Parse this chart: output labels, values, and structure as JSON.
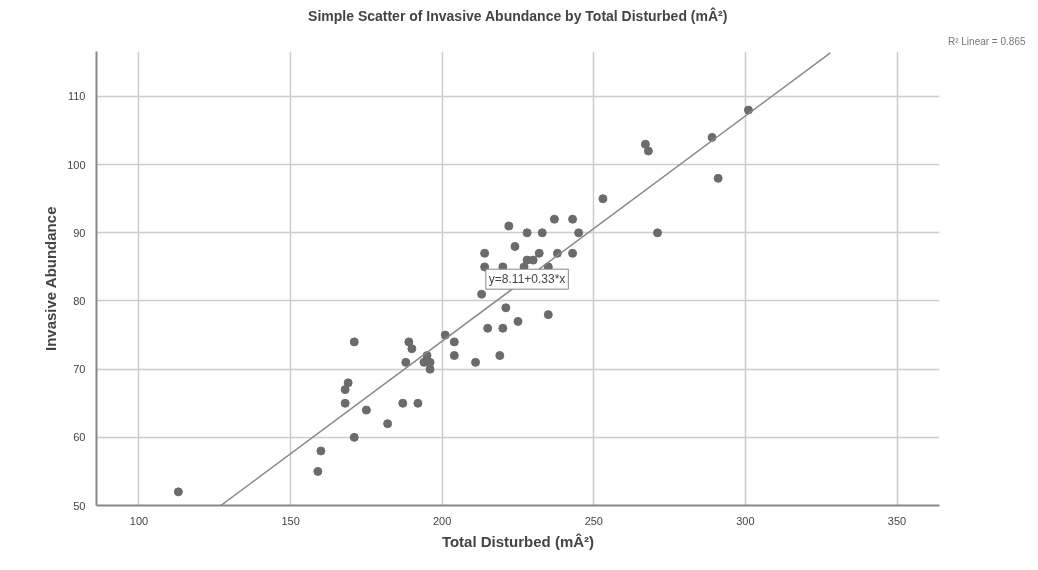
{
  "chart_data": {
    "type": "scatter",
    "title": "Simple Scatter of Invasive Abundance by Total Disturbed (mÂ²)",
    "xlabel": "Total Disturbed (mÂ²)",
    "ylabel": "Invasive Abundance",
    "xlim": [
      86,
      364
    ],
    "xticks": [
      100,
      150,
      200,
      250,
      300,
      350
    ],
    "ylim": [
      50,
      116.6
    ],
    "yticks": [
      50,
      60,
      70,
      80,
      90,
      100,
      110
    ],
    "grid": true,
    "series": [
      {
        "type": "scatter",
        "marker": "circle",
        "color": "#6b6b6b",
        "x": [
          113,
          171,
          189,
          190,
          169,
          168,
          168,
          175,
          187,
          192,
          182,
          171,
          160,
          159,
          253,
          222,
          237,
          243,
          228,
          233,
          245,
          271,
          224,
          214,
          232,
          238,
          243,
          228,
          230,
          214,
          220,
          227,
          235,
          224,
          213,
          221,
          235,
          225,
          215,
          220,
          201,
          204,
          204,
          219,
          211,
          188,
          195,
          196,
          194,
          196,
          267,
          268,
          289,
          301,
          291
        ],
        "values": [
          52,
          74,
          74,
          73,
          68,
          67,
          65,
          64,
          65,
          65,
          62,
          60,
          58,
          55,
          95,
          91,
          92,
          92,
          90,
          90,
          90,
          90,
          88,
          87,
          87,
          87,
          87,
          86,
          86,
          85,
          85,
          85,
          85,
          null,
          81,
          79,
          78,
          77,
          76,
          76,
          75,
          74,
          72,
          72,
          71,
          71,
          72,
          71,
          71,
          70,
          103,
          102,
          104,
          108,
          98
        ]
      },
      {
        "type": "line",
        "color": "#888888",
        "x": [
          127,
          328
        ],
        "values": [
          50.0,
          116.4
        ]
      }
    ],
    "annotations": [
      {
        "text": "y=8.11+0.33*x",
        "x": 228,
        "y": 83.2
      },
      "R² Linear = 0.865"
    ]
  }
}
